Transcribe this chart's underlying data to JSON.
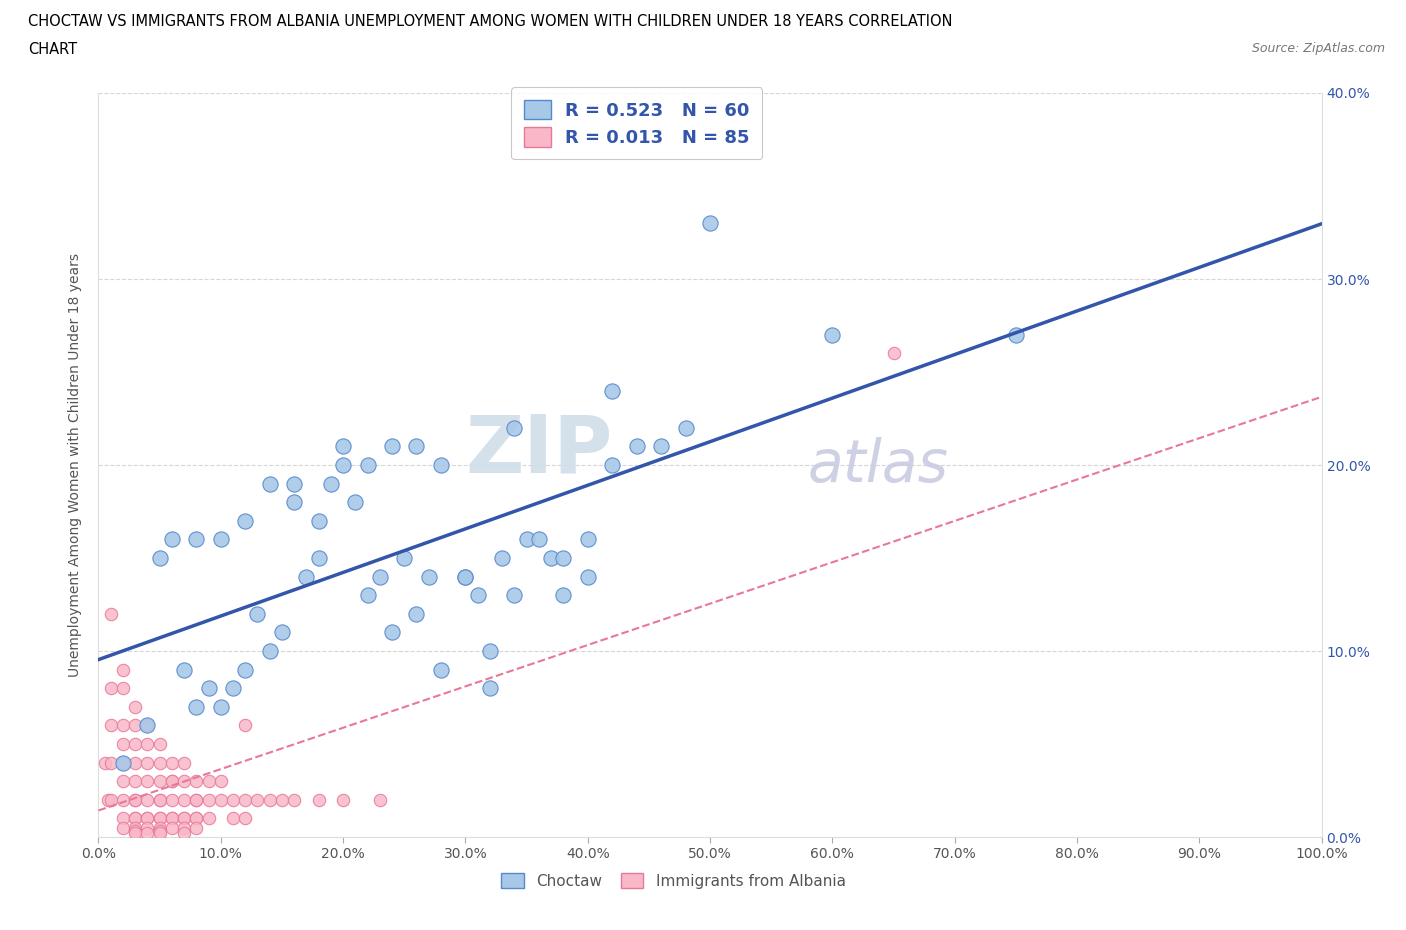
{
  "title_line1": "CHOCTAW VS IMMIGRANTS FROM ALBANIA UNEMPLOYMENT AMONG WOMEN WITH CHILDREN UNDER 18 YEARS CORRELATION",
  "title_line2": "CHART",
  "source": "Source: ZipAtlas.com",
  "ylabel": "Unemployment Among Women with Children Under 18 years",
  "xlim": [
    0,
    1.0
  ],
  "ylim": [
    0,
    0.4
  ],
  "xticks": [
    0.0,
    0.1,
    0.2,
    0.3,
    0.4,
    0.5,
    0.6,
    0.7,
    0.8,
    0.9,
    1.0
  ],
  "xticklabels": [
    "0.0%",
    "10.0%",
    "20.0%",
    "30.0%",
    "40.0%",
    "50.0%",
    "60.0%",
    "70.0%",
    "80.0%",
    "90.0%",
    "100.0%"
  ],
  "yticks": [
    0.0,
    0.1,
    0.2,
    0.3,
    0.4
  ],
  "yticklabels": [
    "0.0%",
    "10.0%",
    "20.0%",
    "30.0%",
    "40.0%"
  ],
  "choctaw_R": 0.523,
  "choctaw_N": 60,
  "albania_R": 0.013,
  "albania_N": 85,
  "choctaw_color": "#a8c8e8",
  "choctaw_edge_color": "#5588cc",
  "albania_color": "#f8b8c8",
  "albania_edge_color": "#e87898",
  "choctaw_line_color": "#3355aa",
  "albania_line_color": "#e87898",
  "watermark_zip": "ZIP",
  "watermark_atlas": "atlas",
  "legend_color": "#3355aa",
  "choctaw_x": [
    0.02,
    0.04,
    0.05,
    0.06,
    0.07,
    0.08,
    0.09,
    0.1,
    0.11,
    0.12,
    0.13,
    0.14,
    0.15,
    0.16,
    0.17,
    0.18,
    0.19,
    0.2,
    0.21,
    0.22,
    0.23,
    0.24,
    0.25,
    0.26,
    0.27,
    0.28,
    0.3,
    0.31,
    0.32,
    0.33,
    0.34,
    0.35,
    0.37,
    0.38,
    0.4,
    0.42,
    0.44,
    0.46,
    0.48,
    0.5,
    0.08,
    0.1,
    0.12,
    0.14,
    0.16,
    0.18,
    0.2,
    0.22,
    0.24,
    0.26,
    0.28,
    0.3,
    0.32,
    0.34,
    0.36,
    0.38,
    0.4,
    0.42,
    0.6,
    0.75
  ],
  "choctaw_y": [
    0.04,
    0.06,
    0.15,
    0.16,
    0.09,
    0.07,
    0.08,
    0.07,
    0.08,
    0.09,
    0.12,
    0.1,
    0.11,
    0.18,
    0.14,
    0.15,
    0.19,
    0.2,
    0.18,
    0.13,
    0.14,
    0.11,
    0.15,
    0.12,
    0.14,
    0.09,
    0.14,
    0.13,
    0.1,
    0.15,
    0.13,
    0.16,
    0.15,
    0.13,
    0.16,
    0.2,
    0.21,
    0.21,
    0.22,
    0.33,
    0.16,
    0.16,
    0.17,
    0.19,
    0.19,
    0.17,
    0.21,
    0.2,
    0.21,
    0.21,
    0.2,
    0.14,
    0.08,
    0.22,
    0.16,
    0.15,
    0.14,
    0.24,
    0.27,
    0.27
  ],
  "albania_x": [
    0.005,
    0.008,
    0.01,
    0.01,
    0.01,
    0.01,
    0.01,
    0.02,
    0.02,
    0.02,
    0.02,
    0.02,
    0.02,
    0.02,
    0.02,
    0.02,
    0.03,
    0.03,
    0.03,
    0.03,
    0.03,
    0.03,
    0.03,
    0.03,
    0.03,
    0.03,
    0.03,
    0.03,
    0.04,
    0.04,
    0.04,
    0.04,
    0.04,
    0.04,
    0.04,
    0.04,
    0.04,
    0.05,
    0.05,
    0.05,
    0.05,
    0.05,
    0.05,
    0.05,
    0.05,
    0.05,
    0.05,
    0.06,
    0.06,
    0.06,
    0.06,
    0.06,
    0.06,
    0.06,
    0.07,
    0.07,
    0.07,
    0.07,
    0.07,
    0.07,
    0.07,
    0.08,
    0.08,
    0.08,
    0.08,
    0.08,
    0.08,
    0.09,
    0.09,
    0.09,
    0.1,
    0.1,
    0.11,
    0.11,
    0.12,
    0.12,
    0.13,
    0.14,
    0.15,
    0.16,
    0.18,
    0.2,
    0.23,
    0.65,
    0.12
  ],
  "albania_y": [
    0.04,
    0.02,
    0.12,
    0.08,
    0.06,
    0.04,
    0.02,
    0.09,
    0.08,
    0.06,
    0.05,
    0.04,
    0.03,
    0.02,
    0.01,
    0.005,
    0.07,
    0.06,
    0.05,
    0.04,
    0.03,
    0.02,
    0.02,
    0.01,
    0.01,
    0.005,
    0.003,
    0.002,
    0.06,
    0.05,
    0.04,
    0.03,
    0.02,
    0.01,
    0.01,
    0.005,
    0.002,
    0.05,
    0.04,
    0.03,
    0.02,
    0.02,
    0.01,
    0.01,
    0.005,
    0.003,
    0.002,
    0.04,
    0.03,
    0.03,
    0.02,
    0.01,
    0.01,
    0.005,
    0.04,
    0.03,
    0.02,
    0.01,
    0.01,
    0.005,
    0.002,
    0.03,
    0.02,
    0.02,
    0.01,
    0.01,
    0.005,
    0.03,
    0.02,
    0.01,
    0.03,
    0.02,
    0.02,
    0.01,
    0.02,
    0.01,
    0.02,
    0.02,
    0.02,
    0.02,
    0.02,
    0.02,
    0.02,
    0.26,
    0.06
  ]
}
